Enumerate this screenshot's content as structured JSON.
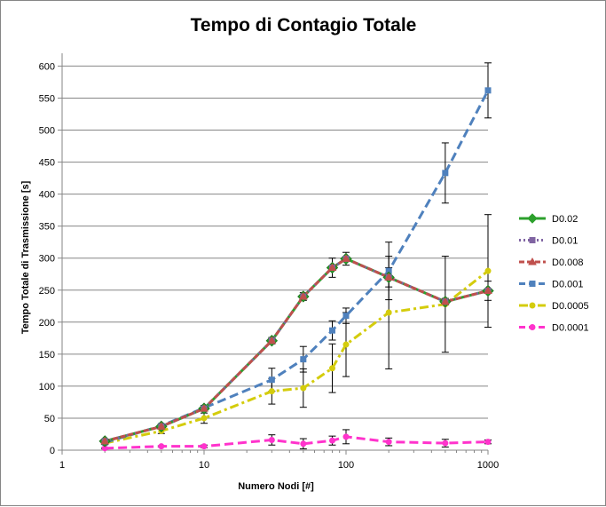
{
  "chart_data": {
    "type": "line",
    "title": "Tempo di Contagio Totale",
    "xlabel": "Numero Nodi [#]",
    "ylabel": "Tempo Totale di Trasmissione [s]",
    "xscale": "log",
    "xlim": [
      1,
      1000
    ],
    "ylim": [
      0,
      620
    ],
    "x_ticks": [
      1,
      10,
      100,
      1000
    ],
    "x_tick_labels": [
      "1",
      "10",
      "100",
      "1000"
    ],
    "y_ticks": [
      0,
      50,
      100,
      150,
      200,
      250,
      300,
      350,
      400,
      450,
      500,
      550,
      600
    ],
    "y_tick_labels": [
      "0",
      "50",
      "100",
      "150",
      "200",
      "250",
      "300",
      "350",
      "400",
      "450",
      "500",
      "550",
      "600"
    ],
    "grid": "horizontal",
    "legend_position": "right",
    "series": [
      {
        "name": "D0.02",
        "color": "#2ca02c",
        "dash": "solid",
        "marker": "diamond",
        "x": [
          2,
          5,
          10,
          30,
          50,
          80,
          100,
          200,
          500,
          1000
        ],
        "y": [
          14,
          37,
          65,
          171,
          240,
          285,
          299,
          270,
          232,
          249
        ],
        "err": [
          0,
          0,
          0,
          0,
          0,
          0,
          0,
          0,
          0,
          0
        ]
      },
      {
        "name": "D0.01",
        "color": "#8064a2",
        "dash": "dot",
        "marker": "square",
        "x": [
          2,
          5,
          10,
          30,
          50,
          80,
          100,
          200,
          500,
          1000
        ],
        "y": [
          14,
          37,
          65,
          171,
          240,
          285,
          299,
          270,
          232,
          249
        ],
        "err": [
          0,
          0,
          0,
          0,
          0,
          0,
          0,
          0,
          0,
          0
        ]
      },
      {
        "name": "D0.008",
        "color": "#c0504d",
        "dash": "dash",
        "marker": "triangle",
        "x": [
          2,
          5,
          10,
          30,
          50,
          80,
          100,
          200,
          500,
          1000
        ],
        "y": [
          14,
          37,
          65,
          171,
          240,
          285,
          299,
          270,
          232,
          249
        ],
        "err": [
          2,
          2,
          3,
          5,
          6,
          15,
          10,
          15,
          5,
          15
        ]
      },
      {
        "name": "D0.001",
        "color": "#4f81bd",
        "dash": "longdash",
        "marker": "square",
        "x": [
          2,
          5,
          10,
          30,
          50,
          80,
          100,
          200,
          500,
          1000
        ],
        "y": [
          12,
          38,
          66,
          110,
          142,
          187,
          210,
          280,
          433,
          562
        ],
        "err": [
          2,
          3,
          4,
          18,
          20,
          15,
          12,
          45,
          47,
          43
        ]
      },
      {
        "name": "D0.0005",
        "color": "#d4cc0c",
        "dash": "dashdot",
        "marker": "circle",
        "x": [
          2,
          5,
          10,
          30,
          50,
          80,
          100,
          200,
          500,
          1000
        ],
        "y": [
          11,
          30,
          50,
          92,
          97,
          128,
          165,
          215,
          228,
          280
        ],
        "err": [
          2,
          4,
          8,
          20,
          30,
          38,
          50,
          88,
          75,
          88
        ]
      },
      {
        "name": "D0.0001",
        "color": "#ff33cc",
        "dash": "longdash",
        "marker": "circle",
        "x": [
          2,
          5,
          10,
          30,
          50,
          80,
          100,
          200,
          500,
          1000
        ],
        "y": [
          3,
          6,
          6,
          16,
          10,
          15,
          21,
          13,
          11,
          13
        ],
        "err": [
          1,
          1,
          2,
          8,
          8,
          7,
          11,
          6,
          6,
          3
        ]
      }
    ]
  }
}
